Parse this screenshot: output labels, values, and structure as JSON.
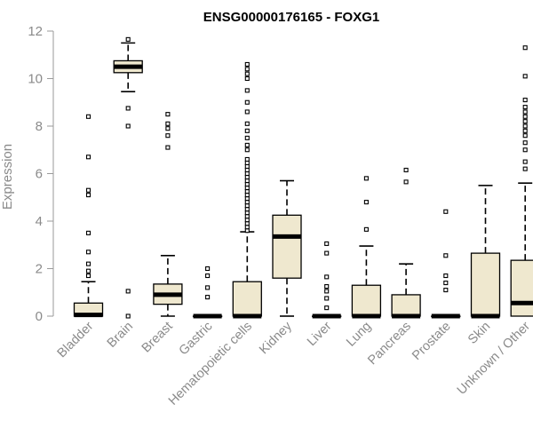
{
  "chart_data": {
    "type": "boxplot",
    "title": "ENSG00000176165 - FOXG1",
    "xlabel": "",
    "ylabel": "Expression",
    "ylim": [
      0,
      12
    ],
    "yticks": [
      0,
      2,
      4,
      6,
      8,
      10,
      12
    ],
    "grid": false,
    "box_color": "#efe8cf",
    "categories": [
      "Bladder",
      "Brain",
      "Breast",
      "Gastric",
      "Hematopoietic cells",
      "Kidney",
      "Liver",
      "Lung",
      "Pancreas",
      "Prostate",
      "Skin",
      "Unknown / Other"
    ],
    "boxes": [
      {
        "q1": 0,
        "median": 0.05,
        "q3": 0.55,
        "whisker_low": 0,
        "whisker_high": 1.45,
        "outliers": [
          1.7,
          1.9,
          2.2,
          2.7,
          3.5,
          5.1,
          5.3,
          6.7,
          8.4
        ]
      },
      {
        "q1": 10.25,
        "median": 10.5,
        "q3": 10.75,
        "whisker_low": 9.45,
        "whisker_high": 11.5,
        "outliers": [
          0,
          1.05,
          8.0,
          8.75,
          11.65
        ]
      },
      {
        "q1": 0.5,
        "median": 0.9,
        "q3": 1.35,
        "whisker_low": 0,
        "whisker_high": 2.55,
        "outliers": [
          7.1,
          7.6,
          7.9,
          8.1,
          8.5
        ]
      },
      {
        "q1": 0,
        "median": 0,
        "q3": 0,
        "whisker_low": 0,
        "whisker_high": 0,
        "outliers": [
          0.8,
          1.2,
          1.7,
          2.0
        ]
      },
      {
        "q1": 0,
        "median": 0,
        "q3": 1.45,
        "whisker_low": 0,
        "whisker_high": 3.55,
        "outliers": [
          3.6,
          3.75,
          3.9,
          4.05,
          4.2,
          4.35,
          4.5,
          4.65,
          4.8,
          4.95,
          5.1,
          5.25,
          5.4,
          5.55,
          5.7,
          5.85,
          6.0,
          6.15,
          6.3,
          6.45,
          6.6,
          7.0,
          7.2,
          7.5,
          7.8,
          8.1,
          8.6,
          9.0,
          9.5,
          10.0,
          10.2,
          10.4,
          10.6
        ]
      },
      {
        "q1": 1.6,
        "median": 3.35,
        "q3": 4.25,
        "whisker_low": 0,
        "whisker_high": 5.7,
        "outliers": []
      },
      {
        "q1": 0,
        "median": 0,
        "q3": 0,
        "whisker_low": 0,
        "whisker_high": 0,
        "outliers": [
          0.35,
          0.75,
          1.05,
          1.25,
          1.65,
          2.65,
          3.05
        ]
      },
      {
        "q1": 0,
        "median": 0,
        "q3": 1.3,
        "whisker_low": 0,
        "whisker_high": 2.95,
        "outliers": [
          3.65,
          4.8,
          5.8
        ]
      },
      {
        "q1": 0,
        "median": 0,
        "q3": 0.9,
        "whisker_low": 0,
        "whisker_high": 2.2,
        "outliers": [
          5.65,
          6.15
        ]
      },
      {
        "q1": 0,
        "median": 0,
        "q3": 0,
        "whisker_low": 0,
        "whisker_high": 0,
        "outliers": [
          1.1,
          1.4,
          1.7,
          2.55,
          4.4
        ]
      },
      {
        "q1": 0,
        "median": 0,
        "q3": 2.65,
        "whisker_low": 0,
        "whisker_high": 5.5,
        "outliers": []
      },
      {
        "q1": 0,
        "median": 0.55,
        "q3": 2.35,
        "whisker_low": 0,
        "whisker_high": 5.6,
        "outliers": [
          6.2,
          6.5,
          7.0,
          7.3,
          7.6,
          7.8,
          8.0,
          8.2,
          8.4,
          8.6,
          8.8,
          9.1,
          10.1,
          11.3
        ]
      }
    ]
  }
}
